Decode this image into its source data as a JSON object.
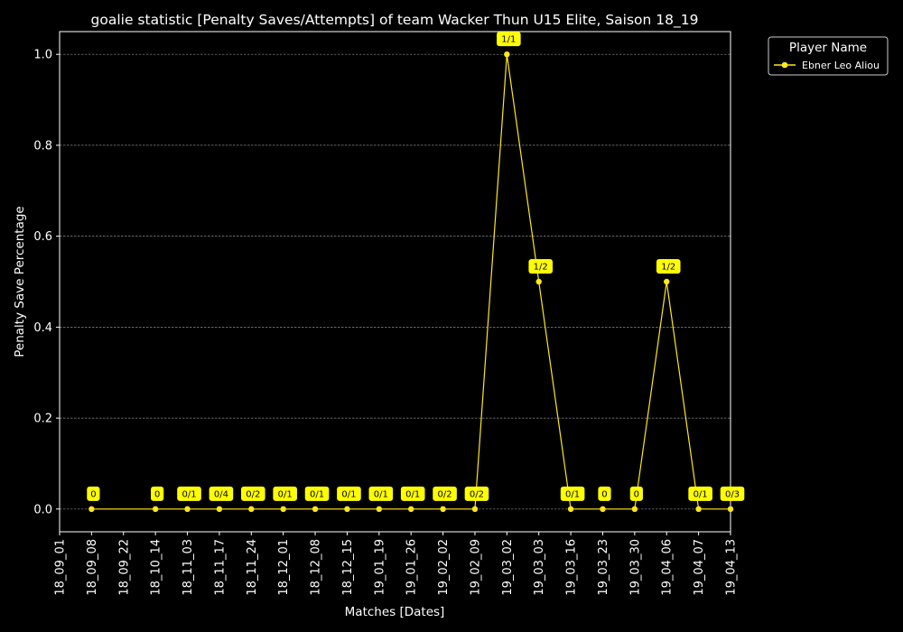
{
  "chart_data": {
    "type": "line",
    "title": "goalie statistic [Penalty Saves/Attempts] of team Wacker Thun U15 Elite, Saison 18_19",
    "xlabel": "Matches [Dates]",
    "ylabel": "Penalty Save Percentage",
    "categories": [
      "18_09_01",
      "18_09_08",
      "18_09_22",
      "18_10_14",
      "18_11_03",
      "18_11_17",
      "18_11_24",
      "18_12_01",
      "18_12_08",
      "18_12_15",
      "19_01_19",
      "19_01_26",
      "19_02_02",
      "19_02_09",
      "19_03_02",
      "19_03_03",
      "19_03_16",
      "19_03_23",
      "19_03_30",
      "19_04_06",
      "19_04_07",
      "19_04_13"
    ],
    "yticks": [
      "0.0",
      "0.2",
      "0.4",
      "0.6",
      "0.8",
      "1.0"
    ],
    "ylim": [
      -0.05,
      1.05
    ],
    "grid": true,
    "background": "#000000",
    "line_color": "#ffe81a",
    "annotation_bg": "#ffff00",
    "legend_title": "Player Name",
    "legend_position": "outside-top-right",
    "series": [
      {
        "name": "Ebner Leo Aliou",
        "points": [
          {
            "x": "18_09_08",
            "y": 0,
            "label": "0"
          },
          {
            "x": "18_10_14",
            "y": 0,
            "label": "0"
          },
          {
            "x": "18_11_03",
            "y": 0,
            "label": "0/1"
          },
          {
            "x": "18_11_17",
            "y": 0,
            "label": "0/4"
          },
          {
            "x": "18_11_24",
            "y": 0,
            "label": "0/2"
          },
          {
            "x": "18_12_01",
            "y": 0,
            "label": "0/1"
          },
          {
            "x": "18_12_08",
            "y": 0,
            "label": "0/1"
          },
          {
            "x": "18_12_15",
            "y": 0,
            "label": "0/1"
          },
          {
            "x": "19_01_19",
            "y": 0,
            "label": "0/1"
          },
          {
            "x": "19_01_26",
            "y": 0,
            "label": "0/1"
          },
          {
            "x": "19_02_02",
            "y": 0,
            "label": "0/2"
          },
          {
            "x": "19_02_09",
            "y": 0,
            "label": "0/2"
          },
          {
            "x": "19_03_02",
            "y": 1.0,
            "label": "1/1"
          },
          {
            "x": "19_03_03",
            "y": 0.5,
            "label": "1/2"
          },
          {
            "x": "19_03_16",
            "y": 0,
            "label": "0/1"
          },
          {
            "x": "19_03_23",
            "y": 0,
            "label": "0"
          },
          {
            "x": "19_03_30",
            "y": 0,
            "label": "0"
          },
          {
            "x": "19_04_06",
            "y": 0.5,
            "label": "1/2"
          },
          {
            "x": "19_04_07",
            "y": 0,
            "label": "0/1"
          },
          {
            "x": "19_04_13",
            "y": 0,
            "label": "0/3"
          }
        ]
      }
    ]
  }
}
